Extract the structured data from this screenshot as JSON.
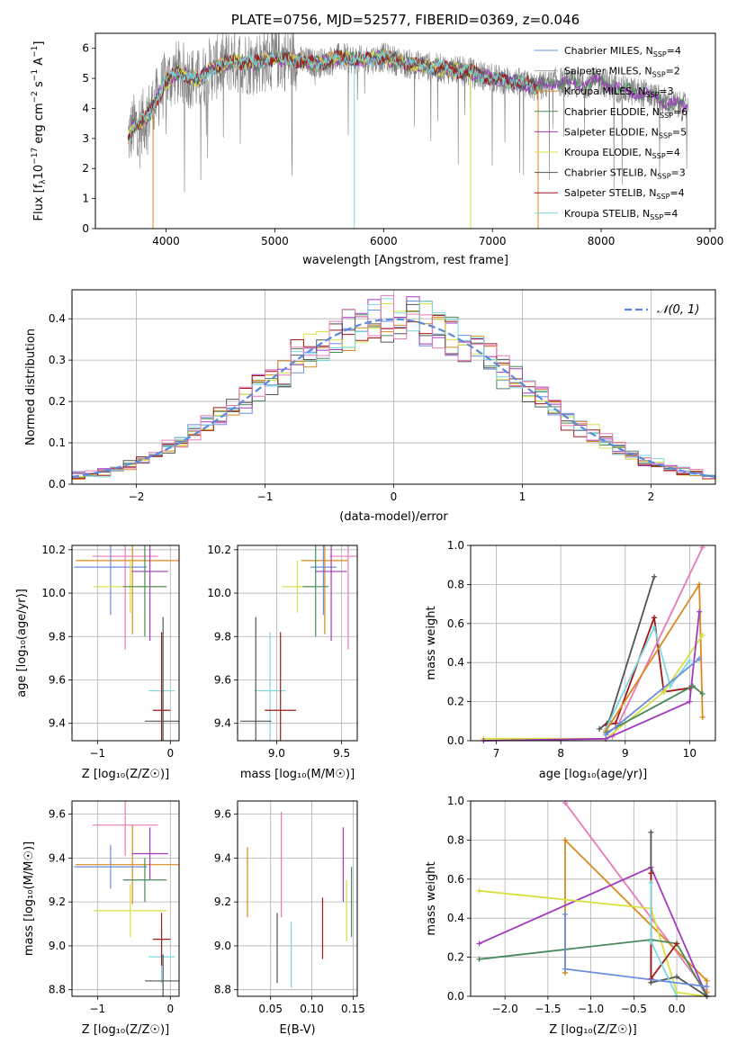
{
  "title": "PLATE=0756, MJD=52577, FIBERID=0369, z=0.046",
  "colors": {
    "chabrier_miles": "#6a8ee0",
    "salpeter_miles": "#aaaaaa",
    "kroupa_miles": "#d98a1f",
    "chabrier_elodie": "#4a8a5a",
    "salpeter_elodie": "#a23ac0",
    "kroupa_elodie": "#d8e040",
    "chabrier_stelib": "#555555",
    "salpeter_stelib": "#a01818",
    "kroupa_stelib": "#7ad8e0",
    "pink": "#e87ab8",
    "data_gray": "#808080",
    "gauss": "#5a8ae0"
  },
  "chart_data": [
    {
      "id": "spectrum",
      "type": "line",
      "title": "PLATE=0756, MJD=52577, FIBERID=0369, z=0.046",
      "xlabel": "wavelength [Angstrom, rest frame]",
      "ylabel_parts": [
        "Flux [f",
        "λ",
        "10",
        "−17",
        " erg cm",
        "−2",
        " s",
        "−1",
        " A",
        "−1",
        "]"
      ],
      "xlim": [
        3350,
        9050
      ],
      "ylim": [
        0,
        6.5
      ],
      "xticks": [
        "4000",
        "5000",
        "6000",
        "7000",
        "8000",
        "9000"
      ],
      "yticks": [
        "0",
        "1",
        "2",
        "3",
        "4",
        "5",
        "6"
      ],
      "continuum_x": [
        3650,
        3700,
        3800,
        3900,
        4000,
        4100,
        4200,
        4300,
        4400,
        4500,
        4600,
        4800,
        5000,
        5200,
        5400,
        5600,
        5800,
        6000,
        6200,
        6400,
        6600,
        6800,
        7000,
        7200,
        7400,
        7600,
        7800,
        8000,
        8200,
        8400,
        8600,
        8800
      ],
      "continuum_y": [
        3.0,
        3.4,
        3.6,
        4.2,
        4.9,
        5.2,
        5.1,
        4.9,
        5.3,
        5.4,
        5.6,
        5.5,
        5.7,
        5.6,
        5.5,
        5.7,
        5.6,
        5.7,
        5.5,
        5.4,
        5.3,
        5.2,
        5.0,
        4.9,
        4.7,
        4.9,
        4.8,
        4.9,
        4.6,
        4.5,
        4.2,
        4.0
      ],
      "legend": [
        {
          "name": "Chabrier MILES, N",
          "sub": "SSP",
          "val": "=4",
          "color": "#6a8ee0"
        },
        {
          "name": "Salpeter MILES, N",
          "sub": "SSP",
          "val": "=2",
          "color": "#aaaaaa"
        },
        {
          "name": "Kroupa MILES, N",
          "sub": "SSP",
          "val": "=3",
          "color": "#d98a1f"
        },
        {
          "name": "Chabrier ELODIE, N",
          "sub": "SSP",
          "val": "=6",
          "color": "#4a8a5a"
        },
        {
          "name": "Salpeter ELODIE, N",
          "sub": "SSP",
          "val": "=5",
          "color": "#a23ac0"
        },
        {
          "name": "Kroupa ELODIE, N",
          "sub": "SSP",
          "val": "=4",
          "color": "#d8e040"
        },
        {
          "name": "Chabrier STELIB, N",
          "sub": "SSP",
          "val": "=3",
          "color": "#555555"
        },
        {
          "name": "Salpeter STELIB, N",
          "sub": "SSP",
          "val": "=4",
          "color": "#a01818"
        },
        {
          "name": "Kroupa STELIB, N",
          "sub": "SSP",
          "val": "=4",
          "color": "#7ad8e0"
        }
      ]
    },
    {
      "id": "residuals",
      "type": "histogram",
      "xlabel": "(data-model)/error",
      "ylabel": "Normed distribution",
      "xlim": [
        -2.5,
        2.5
      ],
      "ylim": [
        0,
        0.47
      ],
      "xticks": [
        "−2",
        "−1",
        "0",
        "1",
        "2"
      ],
      "xtick_vals": [
        -2,
        -1,
        0,
        1,
        2
      ],
      "yticks": [
        "0.0",
        "0.1",
        "0.2",
        "0.3",
        "0.4"
      ],
      "ytick_vals": [
        0,
        0.1,
        0.2,
        0.3,
        0.4
      ],
      "legend": "𝒩(0, 1)",
      "bin_width": 0.1,
      "bin_start": -2.5
    },
    {
      "id": "age_vs_Z",
      "type": "errorbar",
      "xlabel": "Z [log₁₀(Z/Z☉)]",
      "ylabel": "age  [log₁₀(age/yr)]",
      "xlim": [
        -1.35,
        0.12
      ],
      "ylim": [
        9.32,
        10.22
      ],
      "xticks": [
        "−1",
        "0"
      ],
      "xtick_vals": [
        -1,
        0
      ],
      "yticks": [
        "9.4",
        "9.6",
        "9.8",
        "10.0",
        "10.2"
      ],
      "ytick_vals": [
        9.4,
        9.6,
        9.8,
        10.0,
        10.2
      ],
      "points": [
        {
          "x": -0.62,
          "xerr": 0.45,
          "y": 10.17,
          "yerr": 0.43,
          "color": "#e87ab8"
        },
        {
          "x": -0.52,
          "xerr": 0.78,
          "y": 10.15,
          "yerr": 0.34,
          "color": "#d98a1f"
        },
        {
          "x": -0.82,
          "xerr": 0.5,
          "y": 10.12,
          "yerr": 0.22,
          "color": "#6a8ee0"
        },
        {
          "x": -0.28,
          "xerr": 0.25,
          "y": 10.1,
          "yerr": 0.32,
          "color": "#a23ac0"
        },
        {
          "x": -0.55,
          "xerr": 0.5,
          "y": 10.03,
          "yerr": 0.12,
          "color": "#d8e040"
        },
        {
          "x": -0.35,
          "xerr": 0.3,
          "y": 10.03,
          "yerr": 0.23,
          "color": "#4a8a5a"
        },
        {
          "x": -0.12,
          "xerr": 0.18,
          "y": 9.55,
          "yerr": 0.27,
          "color": "#7ad8e0"
        },
        {
          "x": -0.12,
          "xerr": 0.12,
          "y": 9.46,
          "yerr": 0.36,
          "color": "#a01818"
        },
        {
          "x": -0.1,
          "xerr": 0.25,
          "y": 9.41,
          "yerr": 0.48,
          "color": "#555555"
        }
      ]
    },
    {
      "id": "age_vs_mass",
      "type": "errorbar",
      "xlabel": "mass [log₁₀(M/M☉)]",
      "ylabel": "",
      "xlim": [
        8.7,
        9.62
      ],
      "ylim": [
        9.32,
        10.22
      ],
      "xticks": [
        "9.0",
        "9.5"
      ],
      "xtick_vals": [
        9.0,
        9.5
      ],
      "yticks": [
        "9.4",
        "9.6",
        "9.8",
        "10.0",
        "10.2"
      ],
      "ytick_vals": [
        9.4,
        9.6,
        9.8,
        10.0,
        10.2
      ],
      "points": [
        {
          "x": 9.55,
          "xerr": 0.14,
          "y": 10.17,
          "yerr": 0.43,
          "color": "#e87ab8"
        },
        {
          "x": 9.37,
          "xerr": 0.18,
          "y": 10.15,
          "yerr": 0.34,
          "color": "#d98a1f"
        },
        {
          "x": 9.36,
          "xerr": 0.1,
          "y": 10.12,
          "yerr": 0.22,
          "color": "#6a8ee0"
        },
        {
          "x": 9.42,
          "xerr": 0.12,
          "y": 10.1,
          "yerr": 0.32,
          "color": "#a23ac0"
        },
        {
          "x": 9.16,
          "xerr": 0.12,
          "y": 10.03,
          "yerr": 0.12,
          "color": "#d8e040"
        },
        {
          "x": 9.3,
          "xerr": 0.1,
          "y": 10.03,
          "yerr": 0.23,
          "color": "#4a8a5a"
        },
        {
          "x": 8.95,
          "xerr": 0.12,
          "y": 9.55,
          "yerr": 0.27,
          "color": "#7ad8e0"
        },
        {
          "x": 9.03,
          "xerr": 0.12,
          "y": 9.46,
          "yerr": 0.36,
          "color": "#a01818"
        },
        {
          "x": 8.84,
          "xerr": 0.12,
          "y": 9.41,
          "yerr": 0.48,
          "color": "#555555"
        }
      ]
    },
    {
      "id": "weight_vs_age",
      "type": "line",
      "xlabel": "age  [log₁₀(age/yr)]",
      "ylabel": "mass weight",
      "xlim": [
        6.6,
        10.4
      ],
      "ylim": [
        0,
        1.0
      ],
      "xticks": [
        "7",
        "8",
        "9",
        "10"
      ],
      "xtick_vals": [
        7,
        8,
        9,
        10
      ],
      "yticks": [
        "0.0",
        "0.2",
        "0.4",
        "0.6",
        "0.8",
        "1.0"
      ],
      "ytick_vals": [
        0,
        0.2,
        0.4,
        0.6,
        0.8,
        1.0
      ],
      "series": [
        {
          "color": "#555555",
          "x": [
            8.6,
            8.75,
            9.45
          ],
          "y": [
            0.06,
            0.1,
            0.84
          ]
        },
        {
          "color": "#a01818",
          "x": [
            8.7,
            8.85,
            9.45,
            9.6,
            10.0
          ],
          "y": [
            0.08,
            0.09,
            0.63,
            0.25,
            0.27
          ]
        },
        {
          "color": "#7ad8e0",
          "x": [
            8.7,
            9.45,
            9.7,
            10.0
          ],
          "y": [
            0.06,
            0.58,
            0.28,
            0.41
          ]
        },
        {
          "color": "#e87ab8",
          "x": [
            8.8,
            10.2
          ],
          "y": [
            0.02,
            0.99
          ]
        },
        {
          "color": "#d98a1f",
          "x": [
            8.7,
            10.15,
            10.2
          ],
          "y": [
            0.05,
            0.8,
            0.12
          ]
        },
        {
          "color": "#d8e040",
          "x": [
            6.8,
            8.7,
            9.6,
            10.2
          ],
          "y": [
            0.01,
            0.01,
            0.25,
            0.54
          ]
        },
        {
          "color": "#a23ac0",
          "x": [
            6.8,
            8.7,
            10.0,
            10.15
          ],
          "y": [
            0.0,
            0.01,
            0.2,
            0.66
          ]
        },
        {
          "color": "#4a8a5a",
          "x": [
            8.7,
            10.05,
            10.2
          ],
          "y": [
            0.04,
            0.28,
            0.24
          ]
        },
        {
          "color": "#6a8ee0",
          "x": [
            8.7,
            10.15
          ],
          "y": [
            0.03,
            0.42
          ]
        }
      ]
    },
    {
      "id": "mass_vs_Z",
      "type": "errorbar",
      "xlabel": "Z [log₁₀(Z/Z☉)]",
      "ylabel": "mass [log₁₀(M/M☉)]",
      "xlim": [
        -1.35,
        0.12
      ],
      "ylim": [
        8.77,
        9.66
      ],
      "xticks": [
        "−1",
        "0"
      ],
      "xtick_vals": [
        -1,
        0
      ],
      "yticks": [
        "8.8",
        "9.0",
        "9.2",
        "9.4",
        "9.6"
      ],
      "ytick_vals": [
        8.8,
        9.0,
        9.2,
        9.4,
        9.6
      ],
      "points": [
        {
          "x": -0.62,
          "xerr": 0.45,
          "y": 9.55,
          "yerr": 0.14,
          "color": "#e87ab8"
        },
        {
          "x": -0.52,
          "xerr": 0.78,
          "y": 9.37,
          "yerr": 0.18,
          "color": "#d98a1f"
        },
        {
          "x": -0.82,
          "xerr": 0.5,
          "y": 9.36,
          "yerr": 0.1,
          "color": "#6a8ee0"
        },
        {
          "x": -0.28,
          "xerr": 0.25,
          "y": 9.42,
          "yerr": 0.12,
          "color": "#a23ac0"
        },
        {
          "x": -0.55,
          "xerr": 0.5,
          "y": 9.16,
          "yerr": 0.12,
          "color": "#d8e040"
        },
        {
          "x": -0.35,
          "xerr": 0.3,
          "y": 9.3,
          "yerr": 0.1,
          "color": "#4a8a5a"
        },
        {
          "x": -0.12,
          "xerr": 0.18,
          "y": 8.95,
          "yerr": 0.12,
          "color": "#7ad8e0"
        },
        {
          "x": -0.12,
          "xerr": 0.12,
          "y": 9.03,
          "yerr": 0.12,
          "color": "#a01818"
        },
        {
          "x": -0.1,
          "xerr": 0.25,
          "y": 8.84,
          "yerr": 0.12,
          "color": "#555555"
        }
      ]
    },
    {
      "id": "mass_vs_ebv",
      "type": "errorbar",
      "xlabel": "E(B-V)",
      "ylabel": "",
      "xlim": [
        0.01,
        0.155
      ],
      "ylim": [
        8.77,
        9.66
      ],
      "xticks": [
        "0.05",
        "0.10",
        "0.15"
      ],
      "xtick_vals": [
        0.05,
        0.1,
        0.15
      ],
      "yticks": [
        "8.8",
        "9.0",
        "9.2",
        "9.4",
        "9.6"
      ],
      "ytick_vals": [
        8.8,
        9.0,
        9.2,
        9.4,
        9.6
      ],
      "points": [
        {
          "x": 0.063,
          "xerr": 0,
          "y": 9.37,
          "yerr": 0.24,
          "color": "#e87ab8"
        },
        {
          "x": 0.022,
          "xerr": 0,
          "y": 9.29,
          "yerr": 0.16,
          "color": "#d98a1f"
        },
        {
          "x": 0.138,
          "xerr": 0,
          "y": 9.37,
          "yerr": 0.17,
          "color": "#a23ac0"
        },
        {
          "x": 0.142,
          "xerr": 0,
          "y": 9.16,
          "yerr": 0.14,
          "color": "#d8e040"
        },
        {
          "x": 0.148,
          "xerr": 0,
          "y": 9.2,
          "yerr": 0.16,
          "color": "#4a8a5a"
        },
        {
          "x": 0.075,
          "xerr": 0,
          "y": 8.96,
          "yerr": 0.15,
          "color": "#7ad8e0"
        },
        {
          "x": 0.113,
          "xerr": 0,
          "y": 9.08,
          "yerr": 0.14,
          "color": "#a01818"
        },
        {
          "x": 0.058,
          "xerr": 0,
          "y": 8.99,
          "yerr": 0.16,
          "color": "#555555"
        }
      ]
    },
    {
      "id": "weight_vs_Z",
      "type": "line",
      "xlabel": "Z [log₁₀(Z/Z☉)]",
      "ylabel": "mass weight",
      "xlim": [
        -2.4,
        0.45
      ],
      "ylim": [
        0,
        1.0
      ],
      "xticks": [
        "−2.0",
        "−1.5",
        "−1.0",
        "−0.5",
        "0.0"
      ],
      "xtick_vals": [
        -2.0,
        -1.5,
        -1.0,
        -0.5,
        0.0
      ],
      "yticks": [
        "0.0",
        "0.2",
        "0.4",
        "0.6",
        "0.8",
        "1.0"
      ],
      "ytick_vals": [
        0,
        0.2,
        0.4,
        0.6,
        0.8,
        1.0
      ],
      "series": [
        {
          "color": "#e87ab8",
          "x": [
            -1.3,
            0.35
          ],
          "y": [
            0.99,
            0.02
          ]
        },
        {
          "color": "#d98a1f",
          "x": [
            -1.3,
            -1.3,
            0.35,
            0.35
          ],
          "y": [
            0.12,
            0.8,
            0.08,
            0.02
          ]
        },
        {
          "color": "#a23ac0",
          "x": [
            -2.3,
            -0.3,
            0.35
          ],
          "y": [
            0.27,
            0.66,
            0.0
          ]
        },
        {
          "color": "#d8e040",
          "x": [
            -2.3,
            -0.3,
            0.0,
            0.35
          ],
          "y": [
            0.54,
            0.45,
            0.02,
            0.0
          ]
        },
        {
          "color": "#4a8a5a",
          "x": [
            -2.3,
            -0.3,
            0.0,
            0.35
          ],
          "y": [
            0.19,
            0.29,
            0.27,
            0.0
          ]
        },
        {
          "color": "#555555",
          "x": [
            -0.3,
            -0.3,
            0.0,
            0.35
          ],
          "y": [
            0.84,
            0.07,
            0.1,
            0.0
          ]
        },
        {
          "color": "#a01818",
          "x": [
            -0.3,
            -0.3,
            0.0
          ],
          "y": [
            0.63,
            0.09,
            0.27
          ]
        },
        {
          "color": "#7ad8e0",
          "x": [
            -0.3,
            -0.3,
            0.0
          ],
          "y": [
            0.58,
            0.28,
            0.0
          ]
        },
        {
          "color": "#6a8ee0",
          "x": [
            -1.3,
            -1.3,
            0.35
          ],
          "y": [
            0.42,
            0.14,
            0.05
          ]
        }
      ]
    }
  ]
}
